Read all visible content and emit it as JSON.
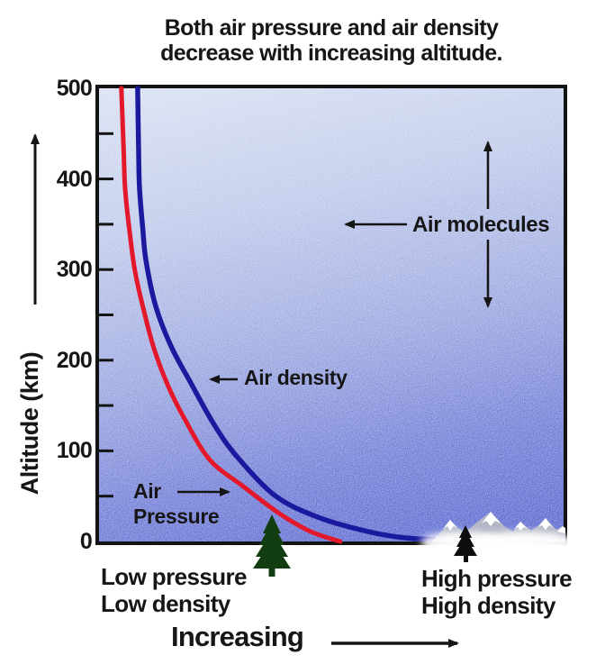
{
  "colors": {
    "curve_pressure": "#e4182b",
    "curve_density": "#1b1a9e",
    "axis": "#131313",
    "text": "#161616",
    "bg_stops": [
      "#d4ddf1",
      "#b6c2e8",
      "#8d9bdc",
      "#5e6cd2",
      "#4150c8"
    ],
    "pine_tree": "#123d10",
    "small_tree": "#0d0d0d",
    "mountain_body": "#b4b8c6",
    "snow": "#ffffff"
  },
  "chart_data": {
    "type": "line",
    "title": "Both air pressure and air density decrease with increasing altitude.",
    "title_lines": [
      "Both air pressure and air density",
      "decrease with increasing altitude."
    ],
    "yaxis": {
      "label": "Altitude (km)",
      "range": [
        0,
        500
      ],
      "ticks": [
        500,
        400,
        300,
        200,
        100,
        0
      ],
      "minor_tick_step": 50,
      "grid": false
    },
    "xaxis": {
      "label": "Increasing",
      "scale": "qualitative (no numeric ticks); x given as fraction 0-1 of plot width"
    },
    "series": [
      {
        "name": "Air Pressure",
        "color": "#e4182b",
        "points": [
          [
            0.05,
            500
          ],
          [
            0.055,
            430
          ],
          [
            0.058,
            389
          ],
          [
            0.068,
            340
          ],
          [
            0.079,
            299
          ],
          [
            0.098,
            255
          ],
          [
            0.12,
            213
          ],
          [
            0.15,
            172
          ],
          [
            0.186,
            135
          ],
          [
            0.24,
            90
          ],
          [
            0.311,
            61
          ],
          [
            0.389,
            31
          ],
          [
            0.456,
            11
          ],
          [
            0.52,
            0
          ]
        ]
      },
      {
        "name": "Air density",
        "color": "#1b1a9e",
        "points": [
          [
            0.085,
            500
          ],
          [
            0.087,
            430
          ],
          [
            0.089,
            389
          ],
          [
            0.096,
            345
          ],
          [
            0.103,
            309
          ],
          [
            0.124,
            259
          ],
          [
            0.157,
            215
          ],
          [
            0.199,
            175
          ],
          [
            0.248,
            130
          ],
          [
            0.296,
            95
          ],
          [
            0.379,
            51
          ],
          [
            0.466,
            28
          ],
          [
            0.563,
            13
          ],
          [
            0.66,
            4
          ],
          [
            0.795,
            1
          ],
          [
            1.0,
            0
          ]
        ]
      }
    ],
    "annotations": {
      "air_molecules": "Air molecules",
      "air_density": "Air density",
      "air_pressure": [
        "Air",
        "Pressure"
      ],
      "low_corner": [
        "Low pressure",
        "Low density"
      ],
      "high_corner": [
        "High pressure",
        "High density"
      ]
    },
    "legend_position": "none"
  }
}
